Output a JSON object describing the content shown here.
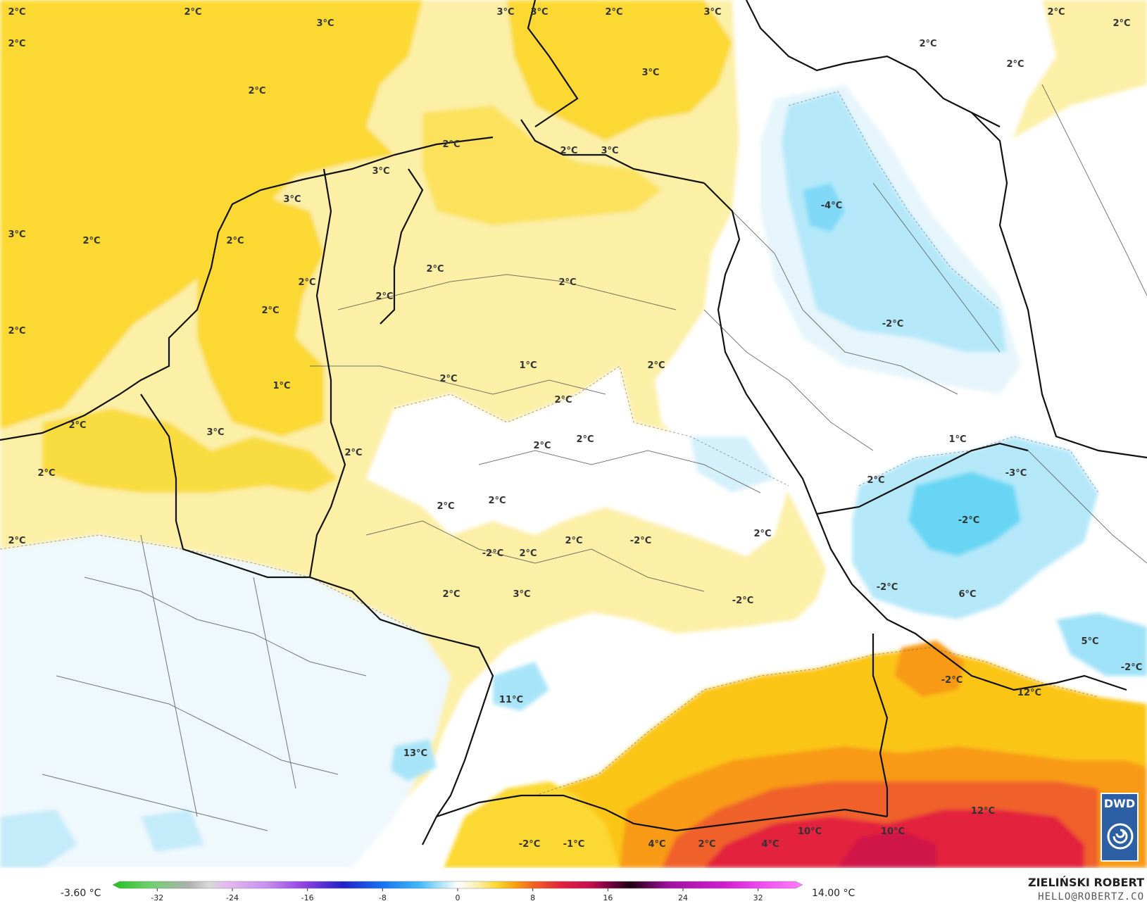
{
  "map": {
    "colors": {
      "sea_yellow": "#fbd832",
      "mid_yellow": "#fbe15c",
      "pale_yellow": "#fcefa6",
      "white": "#ffffff",
      "pale_blue": "#e8f5fc",
      "light_blue": "#c4ebfa",
      "blue": "#9fe2f8",
      "strong_blue": "#68d5f4",
      "orange_yellow": "#fbc514",
      "orange": "#f89a14",
      "red_orange": "#f0602a",
      "red": "#e3203e",
      "dark_red": "#d01448"
    },
    "temperature_labels": [
      {
        "text": "2°C"
      },
      {
        "text": "2°C"
      },
      {
        "text": "3°C"
      },
      {
        "text": "2°C"
      },
      {
        "text": "2°C"
      },
      {
        "text": "3°C"
      },
      {
        "text": "3°C"
      },
      {
        "text": "2°C"
      },
      {
        "text": "3°C"
      },
      {
        "text": "2°C"
      },
      {
        "text": "2°C"
      },
      {
        "text": "2°C"
      },
      {
        "text": "2°C"
      },
      {
        "text": "3°C"
      },
      {
        "text": "2°C"
      },
      {
        "text": "3°C"
      },
      {
        "text": "2°C"
      },
      {
        "text": "3°C"
      },
      {
        "text": "3°C"
      },
      {
        "text": "3°C"
      },
      {
        "text": "2°C"
      },
      {
        "text": "2°C"
      },
      {
        "text": "2°C"
      },
      {
        "text": "2°C"
      },
      {
        "text": "2°C"
      },
      {
        "text": "2°C"
      },
      {
        "text": "2°C"
      },
      {
        "text": "2°C"
      },
      {
        "text": "1°C"
      },
      {
        "text": "2°C"
      },
      {
        "text": "1°C"
      },
      {
        "text": "2°C"
      },
      {
        "text": "2°C"
      },
      {
        "text": "2°C"
      },
      {
        "text": "3°C"
      },
      {
        "text": "2°C"
      },
      {
        "text": "2°C"
      },
      {
        "text": "2°C"
      },
      {
        "text": "2°C"
      },
      {
        "text": "1°C"
      },
      {
        "text": "2°C"
      },
      {
        "text": "2°C"
      },
      {
        "text": "2°C"
      },
      {
        "text": "2°C"
      },
      {
        "text": "2°C"
      },
      {
        "text": "2°C"
      },
      {
        "text": "-2°C"
      },
      {
        "text": "-2°C"
      },
      {
        "text": "2°C"
      },
      {
        "text": "2°C"
      },
      {
        "text": "3°C"
      },
      {
        "text": "-2°C"
      },
      {
        "text": "-4°C"
      },
      {
        "text": "-2°C"
      },
      {
        "text": "-3°C"
      },
      {
        "text": "-2°C"
      },
      {
        "text": "-2°C"
      },
      {
        "text": "6°C"
      },
      {
        "text": "5°C"
      },
      {
        "text": "-2°C"
      },
      {
        "text": "-2°C"
      },
      {
        "text": "12°C"
      },
      {
        "text": "11°C"
      },
      {
        "text": "13°C"
      },
      {
        "text": "12°C"
      },
      {
        "text": "10°C"
      },
      {
        "text": "10°C"
      },
      {
        "text": "4°C"
      },
      {
        "text": "4°C"
      },
      {
        "text": "2°C"
      },
      {
        "text": "-2°C"
      },
      {
        "text": "-1°C"
      }
    ]
  },
  "colorbar": {
    "min_label": "-3.60 °C",
    "max_label": "14.00 °C",
    "ticks": [
      "-32",
      "-24",
      "-16",
      "-8",
      "0",
      "8",
      "16",
      "24",
      "32"
    ],
    "tick_values": [
      -32,
      -24,
      -16,
      -8,
      0,
      8,
      16,
      24,
      32
    ],
    "range": [
      -36,
      36
    ],
    "color_stops": [
      {
        "v": -36,
        "c": "#20c020"
      },
      {
        "v": -32,
        "c": "#70d070"
      },
      {
        "v": -28,
        "c": "#b0b0b0"
      },
      {
        "v": -26,
        "c": "#d8d8d8"
      },
      {
        "v": -24,
        "c": "#e6b8f0"
      },
      {
        "v": -20,
        "c": "#c890f0"
      },
      {
        "v": -16,
        "c": "#9040e0"
      },
      {
        "v": -12,
        "c": "#2020c8"
      },
      {
        "v": -8,
        "c": "#1870f0"
      },
      {
        "v": -4,
        "c": "#40b8f8"
      },
      {
        "v": -2,
        "c": "#a0e0f8"
      },
      {
        "v": 0,
        "c": "#ffffff"
      },
      {
        "v": 2,
        "c": "#fcf0b0"
      },
      {
        "v": 4,
        "c": "#fbd832"
      },
      {
        "v": 6,
        "c": "#f8a010"
      },
      {
        "v": 8,
        "c": "#f06020"
      },
      {
        "v": 11,
        "c": "#e02040"
      },
      {
        "v": 14,
        "c": "#c01050"
      },
      {
        "v": 16,
        "c": "#700040"
      },
      {
        "v": 18,
        "c": "#200010"
      },
      {
        "v": 22,
        "c": "#a010a0"
      },
      {
        "v": 28,
        "c": "#d020d0"
      },
      {
        "v": 32,
        "c": "#f050f0"
      },
      {
        "v": 36,
        "c": "#ff80ff"
      }
    ]
  },
  "branding": {
    "author": "ZIELIŃSKI ROBERT",
    "email": "HELLO@ROBERTZ.CO",
    "logo_text": "DWD"
  }
}
